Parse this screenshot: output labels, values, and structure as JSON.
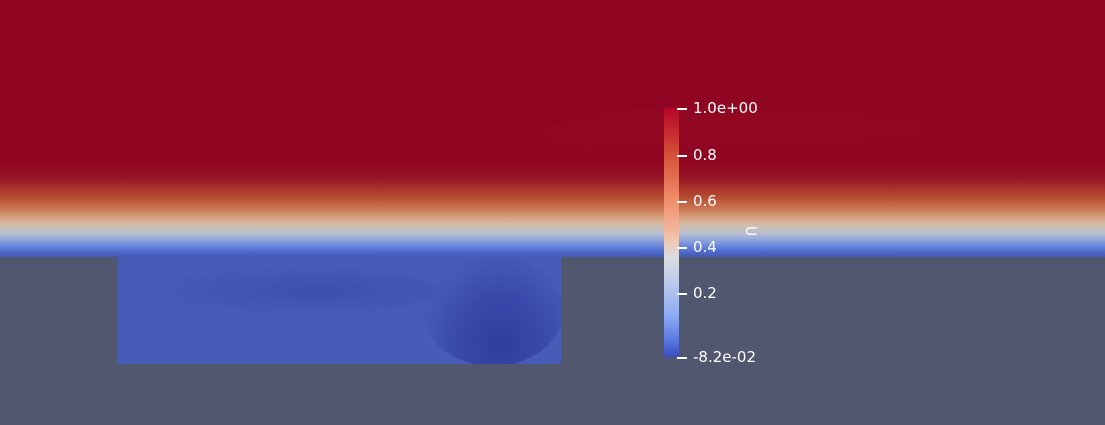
{
  "colorbar": {
    "title": "U",
    "ticks": [
      "1.0e+00",
      "0.8",
      "0.6",
      "0.4",
      "0.2",
      "-8.2e-02"
    ],
    "range": [
      -0.082,
      1.0
    ]
  },
  "colors": {
    "background": "#525770",
    "high": "#8f0420",
    "low": "#3b4cc0"
  }
}
